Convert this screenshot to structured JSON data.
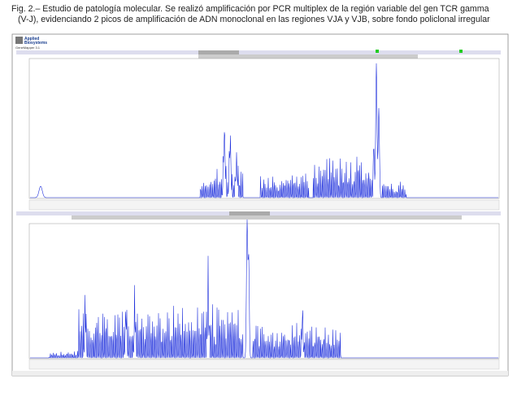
{
  "caption": {
    "line1": "Fig. 2.– Estudio de patología molecular. Se realizó amplificación por PCR multiplex de la región variable del gen TCR gamma",
    "line2": "(V-J), evidenciando 2 picos de amplificación de ADN monoclonal en las regiones VJA y VJB, sobre fondo policlonal irregular"
  },
  "screenshot": {
    "logo": {
      "brand_line1": "Applied",
      "brand_line2": "Biosystems",
      "product": "GeneMapper 3.1"
    }
  }
}
